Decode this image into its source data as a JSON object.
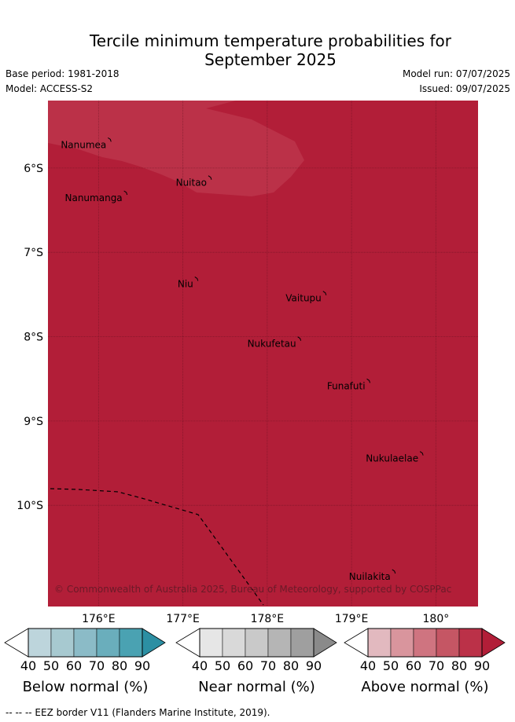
{
  "title_line1": "Tercile minimum temperature probabilities for",
  "title_line2": "September 2025",
  "base_period": "Base period: 1981-2018",
  "model": "Model: ACCESS-S2",
  "model_run": "Model run: 07/07/2025",
  "issued": "Issued: 09/07/2025",
  "map": {
    "lon_range": [
      175.4,
      180.5
    ],
    "lat_range": [
      -11.2,
      -5.2
    ],
    "lat_ticks": [
      {
        "value": -6,
        "label": "6°S"
      },
      {
        "value": -7,
        "label": "7°S"
      },
      {
        "value": -8,
        "label": "8°S"
      },
      {
        "value": -9,
        "label": "9°S"
      },
      {
        "value": -10,
        "label": "10°S"
      }
    ],
    "lon_ticks": [
      {
        "value": 176,
        "label": "176°E"
      },
      {
        "value": 177,
        "label": "177°E"
      },
      {
        "value": 178,
        "label": "178°E"
      },
      {
        "value": 179,
        "label": "179°E"
      },
      {
        "value": 180,
        "label": "180°"
      }
    ],
    "background_category": "Above normal 80-90%",
    "background_color": "#b21e38",
    "patch_category": "Above normal 70-80%",
    "patch_color": "#bb3148",
    "islands": [
      {
        "name": "Nanumea",
        "lon": 176.13,
        "lat": -5.66
      },
      {
        "name": "Nuitao",
        "lon": 177.32,
        "lat": -6.11
      },
      {
        "name": "Nanumanga",
        "lon": 176.32,
        "lat": -6.29
      },
      {
        "name": "Niu",
        "lon": 177.16,
        "lat": -7.31
      },
      {
        "name": "Vaitupu",
        "lon": 178.68,
        "lat": -7.48
      },
      {
        "name": "Nukufetau",
        "lon": 178.38,
        "lat": -8.02
      },
      {
        "name": "Funafuti",
        "lon": 179.2,
        "lat": -8.52
      },
      {
        "name": "Nukulaelae",
        "lon": 179.83,
        "lat": -9.38
      },
      {
        "name": "Nuilakita",
        "lon": 179.5,
        "lat": -10.78
      }
    ],
    "copyright": "© Commonwealth of Australia 2025, Bureau of Meteorology, supported by COSPPac"
  },
  "colorbars": [
    {
      "title": "Below normal (%)",
      "ticks": [
        "40",
        "50",
        "60",
        "70",
        "80",
        "90"
      ],
      "colors": [
        "#ffffff",
        "#bdd5dc",
        "#a7c9d0",
        "#8bbbc7",
        "#6aaebc",
        "#4aa2b2",
        "#2c8fa3"
      ]
    },
    {
      "title": "Near normal (%)",
      "ticks": [
        "40",
        "50",
        "60",
        "70",
        "80",
        "90"
      ],
      "colors": [
        "#ffffff",
        "#e6e6e6",
        "#d9d9d9",
        "#c9c9c9",
        "#b5b5b5",
        "#9f9f9f",
        "#8a8a8a"
      ]
    },
    {
      "title": "Above normal (%)",
      "ticks": [
        "40",
        "50",
        "60",
        "70",
        "80",
        "90"
      ],
      "colors": [
        "#ffffff",
        "#e2b9bf",
        "#d9959d",
        "#cf7480",
        "#c55664",
        "#bb3148",
        "#b21e38"
      ]
    }
  ],
  "footer": "-- -- -- EEZ border V11 (Flanders Marine Institute, 2019)."
}
